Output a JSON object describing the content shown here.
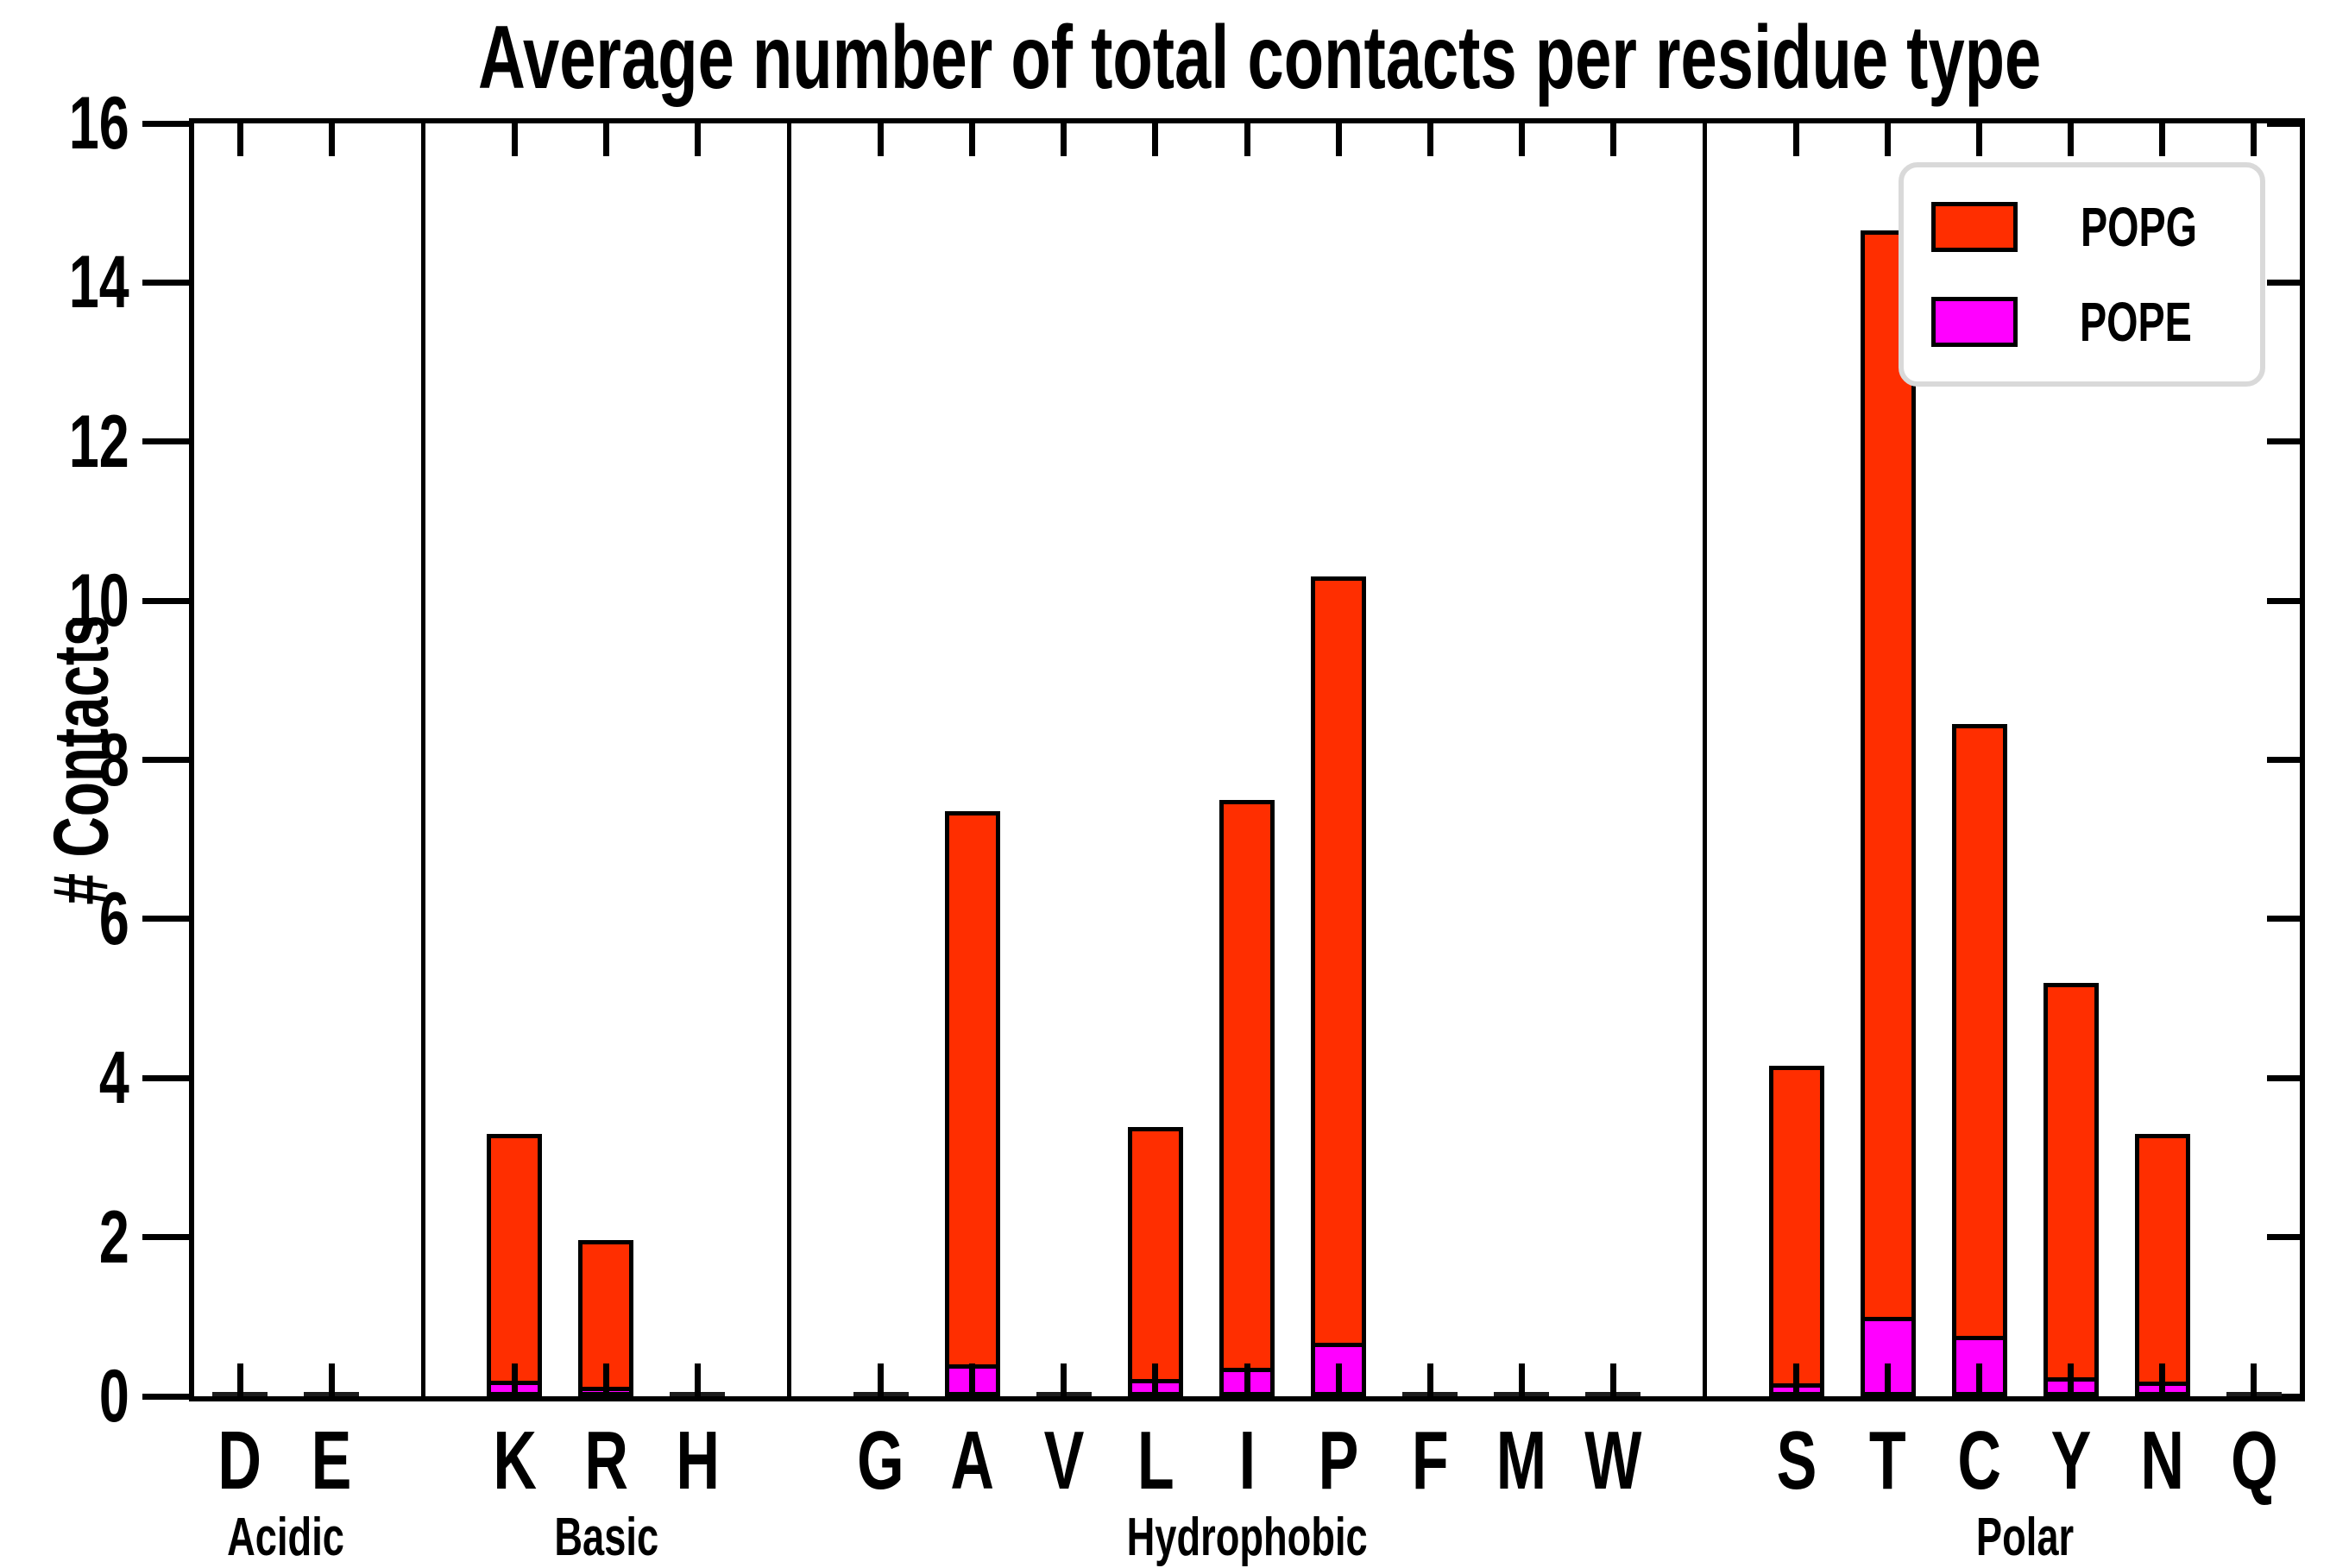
{
  "chart_data": {
    "type": "bar",
    "stacked": true,
    "title": "Average number of total contacts per residue type",
    "ylabel": "# Contacts",
    "ylim": [
      0,
      16
    ],
    "yticks": [
      0,
      2,
      4,
      6,
      8,
      10,
      12,
      14,
      16
    ],
    "grid": false,
    "legend_position": "upper right",
    "stack_order_bottom_to_top": [
      "POPE",
      "POPG"
    ],
    "colors": {
      "POPG": "#ff2e00",
      "POPE": "#ff00ff",
      "edge": "#000000"
    },
    "groups": [
      {
        "label": "Acidic",
        "residues": [
          {
            "letter": "D",
            "pope": 0.0,
            "popg": 0.02,
            "total": 0.02
          },
          {
            "letter": "E",
            "pope": 0.0,
            "popg": 0.03,
            "total": 0.03
          }
        ]
      },
      {
        "label": "Basic",
        "residues": [
          {
            "letter": "K",
            "pope": 0.2,
            "popg": 3.1,
            "total": 3.3
          },
          {
            "letter": "R",
            "pope": 0.12,
            "popg": 1.84,
            "total": 1.96
          },
          {
            "letter": "H",
            "pope": 0.0,
            "popg": 0.02,
            "total": 0.02
          }
        ]
      },
      {
        "label": "Hydrophobic",
        "residues": [
          {
            "letter": "G",
            "pope": 0.0,
            "popg": 0.03,
            "total": 0.03
          },
          {
            "letter": "A",
            "pope": 0.4,
            "popg": 6.95,
            "total": 7.35
          },
          {
            "letter": "V",
            "pope": 0.0,
            "popg": 0.03,
            "total": 0.03
          },
          {
            "letter": "L",
            "pope": 0.22,
            "popg": 3.16,
            "total": 3.38
          },
          {
            "letter": "I",
            "pope": 0.36,
            "popg": 7.14,
            "total": 7.5
          },
          {
            "letter": "P",
            "pope": 0.67,
            "popg": 9.63,
            "total": 10.3
          },
          {
            "letter": "F",
            "pope": 0.0,
            "popg": 0.03,
            "total": 0.03
          },
          {
            "letter": "M",
            "pope": 0.0,
            "popg": 0.01,
            "total": 0.01
          },
          {
            "letter": "W",
            "pope": 0.0,
            "popg": 0.02,
            "total": 0.02
          }
        ]
      },
      {
        "label": "Polar",
        "residues": [
          {
            "letter": "S",
            "pope": 0.16,
            "popg": 3.99,
            "total": 4.15
          },
          {
            "letter": "T",
            "pope": 1.0,
            "popg": 13.65,
            "total": 14.65
          },
          {
            "letter": "C",
            "pope": 0.76,
            "popg": 7.69,
            "total": 8.45
          },
          {
            "letter": "Y",
            "pope": 0.24,
            "popg": 4.96,
            "total": 5.2
          },
          {
            "letter": "N",
            "pope": 0.18,
            "popg": 3.12,
            "total": 3.3
          },
          {
            "letter": "Q",
            "pope": 0.0,
            "popg": 0.01,
            "total": 0.01
          }
        ]
      }
    ]
  },
  "legend": [
    {
      "label": "POPG",
      "color": "#ff2e00"
    },
    {
      "label": "POPE",
      "color": "#ff00ff"
    }
  ]
}
